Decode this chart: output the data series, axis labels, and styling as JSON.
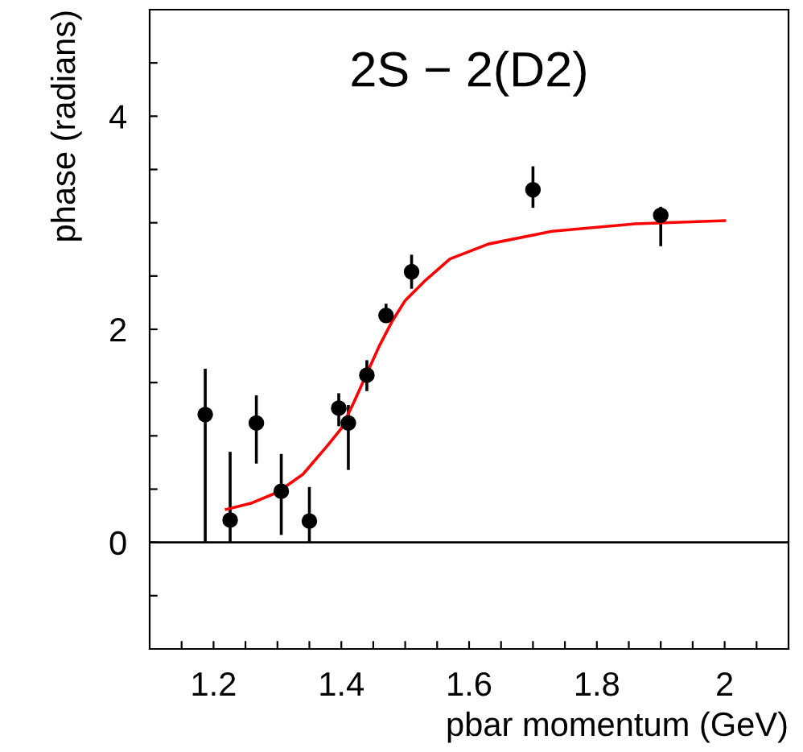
{
  "chart_data": {
    "type": "scatter",
    "xlabel": "pbar momentum (GeV)",
    "ylabel": "phase (radians)",
    "annotations": [
      "2S − 2(D2)"
    ],
    "xlim": [
      1.1,
      2.1
    ],
    "ylim": [
      -1,
      5
    ],
    "xticks": [
      {
        "value": 1.15,
        "label": null
      },
      1.2,
      {
        "value": 1.25,
        "label": null
      },
      {
        "value": 1.3,
        "label": null
      },
      {
        "value": 1.35,
        "label": null
      },
      1.4,
      {
        "value": 1.45,
        "label": null
      },
      {
        "value": 1.5,
        "label": null
      },
      {
        "value": 1.55,
        "label": null
      },
      1.6,
      {
        "value": 1.65,
        "label": null
      },
      {
        "value": 1.7,
        "label": null
      },
      {
        "value": 1.75,
        "label": null
      },
      1.8,
      {
        "value": 1.85,
        "label": null
      },
      {
        "value": 1.9,
        "label": null
      },
      {
        "value": 1.95,
        "label": null
      },
      2,
      {
        "value": 2.05,
        "label": null
      }
    ],
    "yticks": [
      {
        "value": -0.5,
        "label": null
      },
      0,
      {
        "value": 0.5,
        "label": null
      },
      {
        "value": 1,
        "label": null
      },
      {
        "value": 1.5,
        "label": null
      },
      2,
      {
        "value": 2.5,
        "label": null
      },
      {
        "value": 3,
        "label": null
      },
      {
        "value": 3.5,
        "label": null
      },
      4,
      {
        "value": 4.5,
        "label": null
      }
    ],
    "grid": false,
    "legend": false,
    "ref_lines": [
      {
        "axis": "y",
        "value": 0,
        "color": "#000000"
      }
    ],
    "series": [
      {
        "color": "#000000",
        "marker": "circle",
        "x": [
          1.187,
          1.226,
          1.267,
          1.306,
          1.35,
          1.396,
          1.411,
          1.44,
          1.47,
          1.51,
          1.7,
          1.9
        ],
        "values": [
          1.2,
          0.21,
          1.12,
          0.48,
          0.2,
          1.26,
          1.12,
          1.57,
          2.13,
          2.54,
          3.31,
          3.07
        ],
        "errors": [
          [
            0,
            1.63
          ],
          [
            0,
            0.85
          ],
          [
            0.74,
            1.38
          ],
          [
            0.07,
            0.83
          ],
          [
            0,
            0.52
          ],
          [
            1.09,
            1.4
          ],
          [
            0.68,
            1.29
          ],
          [
            1.42,
            1.71
          ],
          [
            2.07,
            2.24
          ],
          [
            2.38,
            2.7
          ],
          [
            3.14,
            3.53
          ],
          [
            2.78,
            3.15
          ]
        ]
      },
      {
        "type": "line",
        "color": "#ff0000",
        "line_style": "solid",
        "x": [
          1.22,
          1.26,
          1.3,
          1.34,
          1.38,
          1.4,
          1.42,
          1.46,
          1.48,
          1.5,
          1.53,
          1.57,
          1.63,
          1.73,
          1.86,
          2.0
        ],
        "values": [
          0.31,
          0.37,
          0.47,
          0.64,
          0.92,
          1.07,
          1.32,
          1.85,
          2.08,
          2.27,
          2.45,
          2.66,
          2.8,
          2.92,
          2.99,
          3.02
        ]
      }
    ]
  }
}
